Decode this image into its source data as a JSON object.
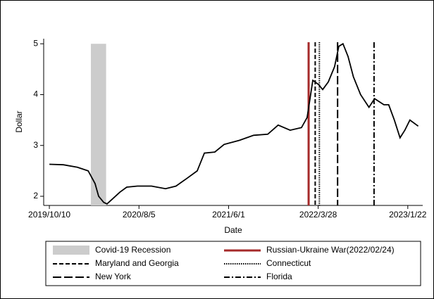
{
  "chart_data": {
    "type": "line",
    "xlabel": "Date",
    "ylabel": "Dollar",
    "x": [
      "2019/10/10",
      "2019/11/26",
      "2020/1/12",
      "2020/2/17",
      "2020/3/11",
      "2020/3/23",
      "2020/4/9",
      "2020/4/20",
      "2020/5/9",
      "2020/6/2",
      "2020/6/25",
      "2020/7/31",
      "2020/9/16",
      "2020/11/2",
      "2020/12/7",
      "2021/1/12",
      "2021/2/16",
      "2021/3/12",
      "2021/4/16",
      "2021/5/17",
      "2021/7/7",
      "2021/8/24",
      "2021/10/10",
      "2021/11/14",
      "2021/12/24",
      "2022/1/31",
      "2022/2/19",
      "2022/3/10",
      "2022/3/29",
      "2022/4/12",
      "2022/5/1",
      "2022/5/22",
      "2022/6/5",
      "2022/6/19",
      "2022/7/6",
      "2022/7/24",
      "2022/8/17",
      "2022/9/14",
      "2022/10/3",
      "2022/11/3",
      "2022/11/19",
      "2022/12/8",
      "2022/12/27",
      "2023/1/12",
      "2023/1/29",
      "2023/2/26"
    ],
    "values": [
      2.63,
      2.62,
      2.57,
      2.5,
      2.25,
      2.0,
      1.88,
      1.85,
      1.95,
      2.08,
      2.18,
      2.2,
      2.2,
      2.15,
      2.2,
      2.35,
      2.5,
      2.85,
      2.87,
      3.02,
      3.1,
      3.2,
      3.22,
      3.4,
      3.3,
      3.35,
      3.55,
      4.28,
      4.2,
      4.1,
      4.25,
      4.55,
      4.95,
      5.0,
      4.75,
      4.35,
      4.0,
      3.75,
      3.92,
      3.8,
      3.8,
      3.5,
      3.15,
      3.3,
      3.5,
      3.38
    ],
    "color": "#000000",
    "shade": {
      "name": "Covid-19 Recession",
      "start": "2020/2/26",
      "end": "2020/4/17",
      "color": "#cccccc"
    },
    "events": [
      {
        "name": "Russian-Ukraine War(2022/02/24)",
        "date": "2022/2/24",
        "color": "#a52a2a",
        "dash": "solid"
      },
      {
        "name": "Maryland and Georgia",
        "date": "2022/3/18",
        "color": "#000000",
        "dash": "dash"
      },
      {
        "name": "Connecticut",
        "date": "2022/4/1",
        "color": "#000000",
        "dash": "dot"
      },
      {
        "name": "New York",
        "date": "2022/6/1",
        "color": "#000000",
        "dash": "longdash"
      },
      {
        "name": "Florida",
        "date": "2022/10/1",
        "color": "#000000",
        "dash": "dashdot"
      }
    ],
    "xlim": [
      "2019/9/21",
      "2023/3/13"
    ],
    "xticks": [
      "2019/10/10",
      "2020/8/5",
      "2021/6/1",
      "2022/3/28",
      "2023/1/22"
    ],
    "ylim": [
      1.82,
      5.1
    ],
    "yticks": [
      2,
      3,
      4,
      5
    ]
  }
}
